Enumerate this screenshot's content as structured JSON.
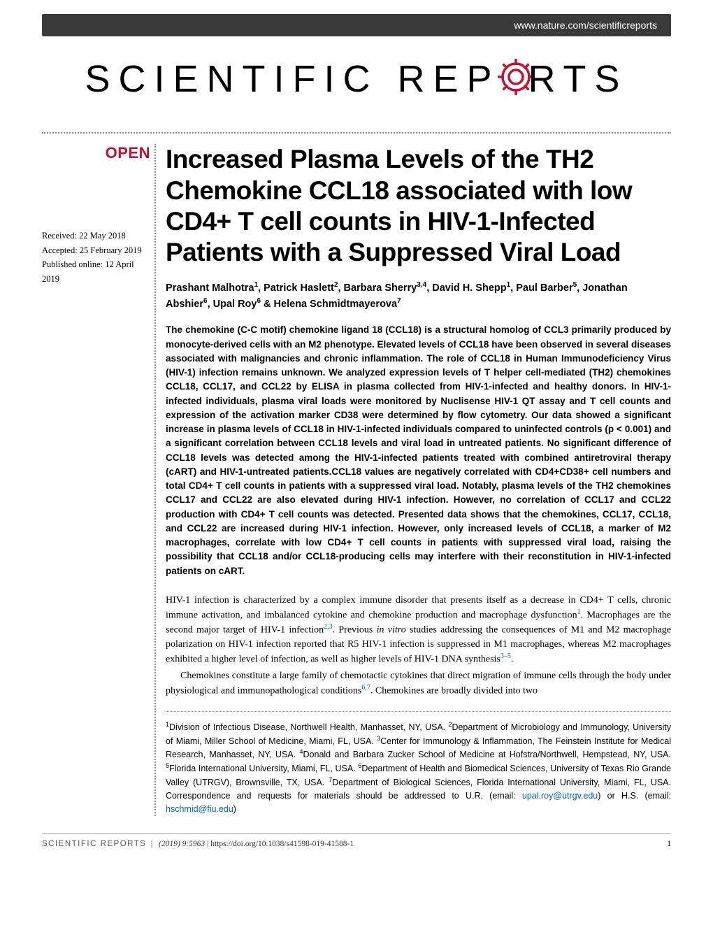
{
  "header": {
    "url": "www.nature.com/scientificreports"
  },
  "journal": {
    "name_part1": "SCIENTIFIC",
    "name_part2": "REP",
    "name_part3": "RTS",
    "gear_color": "#c41230"
  },
  "badge": {
    "open": "OPEN"
  },
  "dates": {
    "received": "Received: 22 May 2018",
    "accepted": "Accepted: 25 February 2019",
    "published": "Published online: 12 April 2019"
  },
  "article": {
    "title": "Increased Plasma Levels of the TH2 Chemokine CCL18 associated with low CD4+ T cell counts in HIV-1-Infected Patients with a Suppressed Viral Load",
    "authors_html": "Prashant Malhotra<sup>1</sup>, Patrick Haslett<sup>2</sup>, Barbara Sherry<sup>3,4</sup>, David H. Shepp<sup>1</sup>, Paul Barber<sup>5</sup>, Jonathan Abshier<sup>6</sup>, Upal Roy<sup>6</sup> & Helena Schmidtmayerova<sup>7</sup>",
    "abstract": "The chemokine (C-C motif) chemokine ligand 18 (CCL18) is a structural homolog of CCL3 primarily produced by monocyte-derived cells with an M2 phenotype. Elevated levels of CCL18 have been observed in several diseases associated with malignancies and chronic inflammation. The role of CCL18 in Human Immunodeficiency Virus (HIV-1) infection remains unknown. We analyzed expression levels of T helper cell-mediated (TH2) chemokines CCL18, CCL17, and CCL22 by ELISA in plasma collected from HIV-1-infected and healthy donors. In HIV-1-infected individuals, plasma viral loads were monitored by Nuclisense HIV-1 QT assay and T cell counts and expression of the activation marker CD38 were determined by flow cytometry. Our data showed a significant increase in plasma levels of CCL18 in HIV-1-infected individuals compared to uninfected controls (p < 0.001) and a significant correlation between CCL18 levels and viral load in untreated patients. No significant difference of CCL18 levels was detected among the HIV-1-infected patients treated with combined antiretroviral therapy (cART) and HIV-1-untreated patients.CCL18 values are negatively correlated with CD4+CD38+ cell numbers and total CD4+ T cell counts in patients with a suppressed viral load. Notably, plasma levels of the TH2 chemokines CCL17 and CCL22 are also elevated during HIV-1 infection. However, no correlation of CCL17 and CCL22 production with CD4+ T cell counts was detected. Presented data shows that the chemokines, CCL17, CCL18, and CCL22 are increased during HIV-1 infection. However, only increased levels of CCL18, a marker of M2 macrophages, correlate with low CD4+ T cell counts in patients with suppressed viral load, raising the possibility that CCL18 and/or CCL18-producing cells may interfere with their reconstitution in HIV-1-infected patients on cART.",
    "body_para1_html": "HIV-1 infection is characterized by a complex immune disorder that presents itself as a decrease in CD4+ T cells, chronic immune activation, and imbalanced cytokine and chemokine production and macrophage dysfunction<sup class=\"ref-sup\">1</sup>. Macrophages are the second major target of HIV-1 infection<sup class=\"ref-sup\">2,3</sup>. Previous <i>in vitro</i> studies addressing the consequences of M1 and M2 macrophage polarization on HIV-1 infection reported that R5 HIV-1 infection is suppressed in M1 macrophages, whereas M2 macrophages exhibited a higher level of infection, as well as higher levels of HIV-1 DNA synthesis<sup class=\"ref-sup\">3–5</sup>.",
    "body_para2_html": "Chemokines constitute a large family of chemotactic cytokines that direct migration of immune cells through the body under physiological and immunopathological conditions<sup class=\"ref-sup\">6,7</sup>. Chemokines are broadly divided into two",
    "affiliations_html": "<sup>1</sup>Division of Infectious Disease, Northwell Health, Manhasset, NY, USA. <sup>2</sup>Department of Microbiology and Immunology, University of Miami, Miller School of Medicine, Miami, FL, USA. <sup>3</sup>Center for Immunology & Inflammation, The Feinstein Institute for Medical Research, Manhasset, NY, USA. <sup>4</sup>Donald and Barbara Zucker School of Medicine at Hofstra/Northwell, Hempstead, NY, USA. <sup>5</sup>Florida International University, Miami, FL, USA. <sup>6</sup>Department of Health and Biomedical Sciences, University of Texas Rio Grande Valley (UTRGV), Brownsville, TX, USA. <sup>7</sup>Department of Biological Sciences, Florida International University, Miami, FL, USA. Correspondence and requests for materials should be addressed to U.R. (email: <span class=\"email-link\">upal.roy@utrgv.edu</span>) or H.S. (email: <span class=\"email-link\">hschmid@fiu.edu</span>)"
  },
  "footer": {
    "journal": "SCIENTIFIC REPORTS",
    "citation": "(2019) 9:5963 ",
    "doi": "| https://doi.org/10.1038/s41598-019-41588-1",
    "page": "1"
  }
}
